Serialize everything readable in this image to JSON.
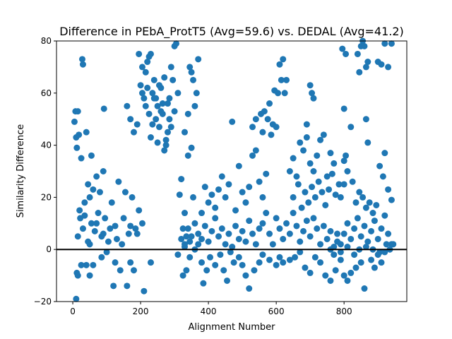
{
  "chart_data": {
    "type": "scatter",
    "title": "Difference in PEbA_ProtT5 (Avg=59.6) vs. DEDAL (Avg=41.2)",
    "xlabel": "Alignment Number",
    "ylabel": "Similarity Difference",
    "xlim": [
      -48,
      985
    ],
    "ylim": [
      -20,
      80
    ],
    "xticks": [
      0,
      200,
      400,
      600,
      800
    ],
    "yticks": [
      -20,
      0,
      20,
      40,
      60,
      80
    ],
    "reference_line_y": 0,
    "marker_color": "#1f77b4",
    "grid": false,
    "legend": "none",
    "points": [
      [
        5,
        49
      ],
      [
        8,
        53
      ],
      [
        10,
        43
      ],
      [
        15,
        53
      ],
      [
        18,
        44
      ],
      [
        22,
        12
      ],
      [
        28,
        73
      ],
      [
        30,
        71
      ],
      [
        35,
        13
      ],
      [
        40,
        45
      ],
      [
        12,
        39
      ],
      [
        25,
        35
      ],
      [
        45,
        25
      ],
      [
        50,
        20
      ],
      [
        60,
        23
      ],
      [
        55,
        36
      ],
      [
        70,
        28
      ],
      [
        80,
        22
      ],
      [
        90,
        30
      ],
      [
        92,
        54
      ],
      [
        10,
        -19
      ],
      [
        12,
        -9
      ],
      [
        15,
        -10
      ],
      [
        25,
        -6
      ],
      [
        40,
        -6
      ],
      [
        50,
        -10
      ],
      [
        60,
        -6
      ],
      [
        85,
        -3
      ],
      [
        100,
        -1
      ],
      [
        120,
        -14
      ],
      [
        125,
        -5
      ],
      [
        140,
        -8
      ],
      [
        160,
        -14
      ],
      [
        170,
        -5
      ],
      [
        180,
        -8
      ],
      [
        210,
        -16
      ],
      [
        230,
        -5
      ],
      [
        15,
        5
      ],
      [
        30,
        8
      ],
      [
        50,
        2
      ],
      [
        70,
        10
      ],
      [
        90,
        6
      ],
      [
        110,
        8
      ],
      [
        130,
        4
      ],
      [
        150,
        12
      ],
      [
        170,
        9
      ],
      [
        190,
        6
      ],
      [
        20,
        15
      ],
      [
        35,
        18
      ],
      [
        55,
        10
      ],
      [
        75,
        14
      ],
      [
        95,
        12
      ],
      [
        115,
        18
      ],
      [
        135,
        26
      ],
      [
        155,
        22
      ],
      [
        175,
        20
      ],
      [
        195,
        15
      ],
      [
        45,
        3
      ],
      [
        65,
        7
      ],
      [
        85,
        5
      ],
      [
        105,
        3
      ],
      [
        125,
        9
      ],
      [
        145,
        2
      ],
      [
        165,
        6
      ],
      [
        185,
        8
      ],
      [
        205,
        10
      ],
      [
        160,
        55
      ],
      [
        170,
        50
      ],
      [
        180,
        45
      ],
      [
        190,
        48
      ],
      [
        200,
        63
      ],
      [
        195,
        75
      ],
      [
        205,
        70
      ],
      [
        210,
        58
      ],
      [
        215,
        68
      ],
      [
        220,
        72
      ],
      [
        225,
        74
      ],
      [
        230,
        75
      ],
      [
        235,
        60
      ],
      [
        240,
        65
      ],
      [
        245,
        58
      ],
      [
        250,
        55
      ],
      [
        255,
        63
      ],
      [
        260,
        62
      ],
      [
        265,
        52
      ],
      [
        270,
        66
      ],
      [
        275,
        40
      ],
      [
        280,
        45
      ],
      [
        285,
        58
      ],
      [
        290,
        70
      ],
      [
        295,
        65
      ],
      [
        300,
        78
      ],
      [
        305,
        79
      ],
      [
        310,
        60
      ],
      [
        215,
        55
      ],
      [
        225,
        52
      ],
      [
        235,
        48
      ],
      [
        245,
        50
      ],
      [
        255,
        47
      ],
      [
        265,
        56
      ],
      [
        275,
        42
      ],
      [
        285,
        50
      ],
      [
        205,
        60
      ],
      [
        220,
        62
      ],
      [
        240,
        58
      ],
      [
        260,
        53
      ],
      [
        280,
        56
      ],
      [
        300,
        53
      ],
      [
        230,
        43
      ],
      [
        250,
        41
      ],
      [
        270,
        38
      ],
      [
        290,
        47
      ],
      [
        340,
        52
      ],
      [
        345,
        70
      ],
      [
        350,
        68
      ],
      [
        355,
        65
      ],
      [
        360,
        55
      ],
      [
        365,
        60
      ],
      [
        370,
        73
      ],
      [
        330,
        45
      ],
      [
        315,
        21
      ],
      [
        320,
        27
      ],
      [
        330,
        14
      ],
      [
        340,
        36
      ],
      [
        350,
        39
      ],
      [
        355,
        20
      ],
      [
        325,
        8
      ],
      [
        335,
        5
      ],
      [
        345,
        3
      ],
      [
        360,
        0
      ],
      [
        370,
        2
      ],
      [
        385,
        -13
      ],
      [
        325,
        -10
      ],
      [
        335,
        -8
      ],
      [
        345,
        -3
      ],
      [
        310,
        -2
      ],
      [
        320,
        4
      ],
      [
        330,
        1
      ],
      [
        340,
        8
      ],
      [
        350,
        5
      ],
      [
        360,
        10
      ],
      [
        370,
        6
      ],
      [
        380,
        4
      ],
      [
        390,
        9
      ],
      [
        400,
        3
      ],
      [
        410,
        7
      ],
      [
        420,
        12
      ],
      [
        430,
        5
      ],
      [
        440,
        8
      ],
      [
        450,
        2
      ],
      [
        460,
        6
      ],
      [
        470,
        1
      ],
      [
        480,
        9
      ],
      [
        490,
        4
      ],
      [
        500,
        7
      ],
      [
        510,
        3
      ],
      [
        520,
        11
      ],
      [
        530,
        6
      ],
      [
        540,
        2
      ],
      [
        550,
        8
      ],
      [
        380,
        14
      ],
      [
        390,
        24
      ],
      [
        400,
        18
      ],
      [
        410,
        21
      ],
      [
        420,
        16
      ],
      [
        430,
        23
      ],
      [
        440,
        28
      ],
      [
        450,
        20
      ],
      [
        460,
        25
      ],
      [
        470,
        49
      ],
      [
        480,
        15
      ],
      [
        490,
        32
      ],
      [
        500,
        22
      ],
      [
        510,
        18
      ],
      [
        520,
        24
      ],
      [
        530,
        36
      ],
      [
        540,
        38
      ],
      [
        550,
        26
      ],
      [
        560,
        20
      ],
      [
        570,
        29
      ],
      [
        380,
        -5
      ],
      [
        395,
        -8
      ],
      [
        405,
        -3
      ],
      [
        420,
        -6
      ],
      [
        435,
        -2
      ],
      [
        445,
        -8
      ],
      [
        455,
        -12
      ],
      [
        465,
        -1
      ],
      [
        475,
        -5
      ],
      [
        490,
        -3
      ],
      [
        500,
        -6
      ],
      [
        510,
        -10
      ],
      [
        520,
        -15
      ],
      [
        535,
        -8
      ],
      [
        550,
        -5
      ],
      [
        560,
        -2
      ],
      [
        580,
        -4
      ],
      [
        600,
        -6
      ],
      [
        610,
        -3
      ],
      [
        620,
        -5
      ],
      [
        530,
        47
      ],
      [
        540,
        50
      ],
      [
        555,
        52
      ],
      [
        560,
        45
      ],
      [
        565,
        53
      ],
      [
        575,
        50
      ],
      [
        580,
        56
      ],
      [
        590,
        48
      ],
      [
        595,
        61
      ],
      [
        605,
        60
      ],
      [
        610,
        71
      ],
      [
        615,
        65
      ],
      [
        620,
        73
      ],
      [
        625,
        60
      ],
      [
        630,
        65
      ],
      [
        585,
        44
      ],
      [
        600,
        47
      ],
      [
        560,
        10
      ],
      [
        570,
        14
      ],
      [
        580,
        6
      ],
      [
        590,
        2
      ],
      [
        600,
        12
      ],
      [
        610,
        8
      ],
      [
        620,
        4
      ],
      [
        630,
        10
      ],
      [
        640,
        6
      ],
      [
        650,
        14
      ],
      [
        660,
        9
      ],
      [
        670,
        3
      ],
      [
        680,
        7
      ],
      [
        690,
        11
      ],
      [
        700,
        5
      ],
      [
        710,
        12
      ],
      [
        720,
        8
      ],
      [
        730,
        2
      ],
      [
        740,
        9
      ],
      [
        750,
        4
      ],
      [
        760,
        7
      ],
      [
        770,
        1
      ],
      [
        780,
        6
      ],
      [
        640,
        30
      ],
      [
        650,
        35
      ],
      [
        660,
        28
      ],
      [
        670,
        41
      ],
      [
        680,
        38
      ],
      [
        690,
        43
      ],
      [
        700,
        33
      ],
      [
        710,
        30
      ],
      [
        720,
        36
      ],
      [
        730,
        42
      ],
      [
        740,
        44
      ],
      [
        750,
        28
      ],
      [
        760,
        37
      ],
      [
        770,
        33
      ],
      [
        650,
        20
      ],
      [
        665,
        25
      ],
      [
        675,
        16
      ],
      [
        685,
        22
      ],
      [
        695,
        18
      ],
      [
        705,
        24
      ],
      [
        715,
        20
      ],
      [
        725,
        26
      ],
      [
        735,
        22
      ],
      [
        745,
        17
      ],
      [
        755,
        23
      ],
      [
        765,
        29
      ],
      [
        775,
        21
      ],
      [
        785,
        25
      ],
      [
        700,
        63
      ],
      [
        705,
        60
      ],
      [
        710,
        58
      ],
      [
        690,
        48
      ],
      [
        640,
        -4
      ],
      [
        655,
        -3
      ],
      [
        670,
        -1
      ],
      [
        685,
        -7
      ],
      [
        700,
        -9
      ],
      [
        715,
        -3
      ],
      [
        730,
        -5
      ],
      [
        745,
        -10
      ],
      [
        760,
        -12
      ],
      [
        775,
        -8
      ],
      [
        790,
        -4
      ],
      [
        800,
        -10
      ],
      [
        810,
        -12
      ],
      [
        820,
        -9
      ],
      [
        835,
        -7
      ],
      [
        850,
        -5
      ],
      [
        860,
        -15
      ],
      [
        790,
        2
      ],
      [
        800,
        6
      ],
      [
        810,
        10
      ],
      [
        820,
        4
      ],
      [
        830,
        8
      ],
      [
        840,
        12
      ],
      [
        850,
        5
      ],
      [
        860,
        9
      ],
      [
        870,
        3
      ],
      [
        880,
        7
      ],
      [
        890,
        11
      ],
      [
        900,
        4
      ],
      [
        910,
        8
      ],
      [
        920,
        13
      ],
      [
        930,
        6
      ],
      [
        940,
        2
      ],
      [
        790,
        20
      ],
      [
        800,
        25
      ],
      [
        810,
        30
      ],
      [
        820,
        47
      ],
      [
        825,
        26
      ],
      [
        835,
        18
      ],
      [
        845,
        22
      ],
      [
        855,
        20
      ],
      [
        865,
        16
      ],
      [
        875,
        18
      ],
      [
        885,
        14
      ],
      [
        895,
        17
      ],
      [
        905,
        32
      ],
      [
        915,
        28
      ],
      [
        920,
        37
      ],
      [
        930,
        23
      ],
      [
        940,
        19
      ],
      [
        795,
        77
      ],
      [
        805,
        75
      ],
      [
        840,
        75
      ],
      [
        845,
        68
      ],
      [
        850,
        78
      ],
      [
        855,
        80
      ],
      [
        860,
        78
      ],
      [
        865,
        70
      ],
      [
        870,
        72
      ],
      [
        800,
        54
      ],
      [
        805,
        36
      ],
      [
        800,
        34
      ],
      [
        865,
        50
      ],
      [
        870,
        41
      ],
      [
        900,
        72
      ],
      [
        910,
        71
      ],
      [
        920,
        79
      ],
      [
        930,
        70
      ],
      [
        940,
        79
      ],
      [
        880,
        -4
      ],
      [
        890,
        -7
      ],
      [
        900,
        -2
      ],
      [
        910,
        -5
      ],
      [
        920,
        -1
      ],
      [
        935,
        0
      ],
      [
        945,
        2
      ],
      [
        760,
        0
      ],
      [
        770,
        -2
      ],
      [
        780,
        3
      ],
      [
        790,
        -1
      ],
      [
        810,
        1
      ],
      [
        830,
        -2
      ],
      [
        845,
        0
      ],
      [
        865,
        1
      ],
      [
        885,
        0
      ],
      [
        905,
        -1
      ],
      [
        925,
        2
      ],
      [
        330,
        2
      ]
    ]
  }
}
